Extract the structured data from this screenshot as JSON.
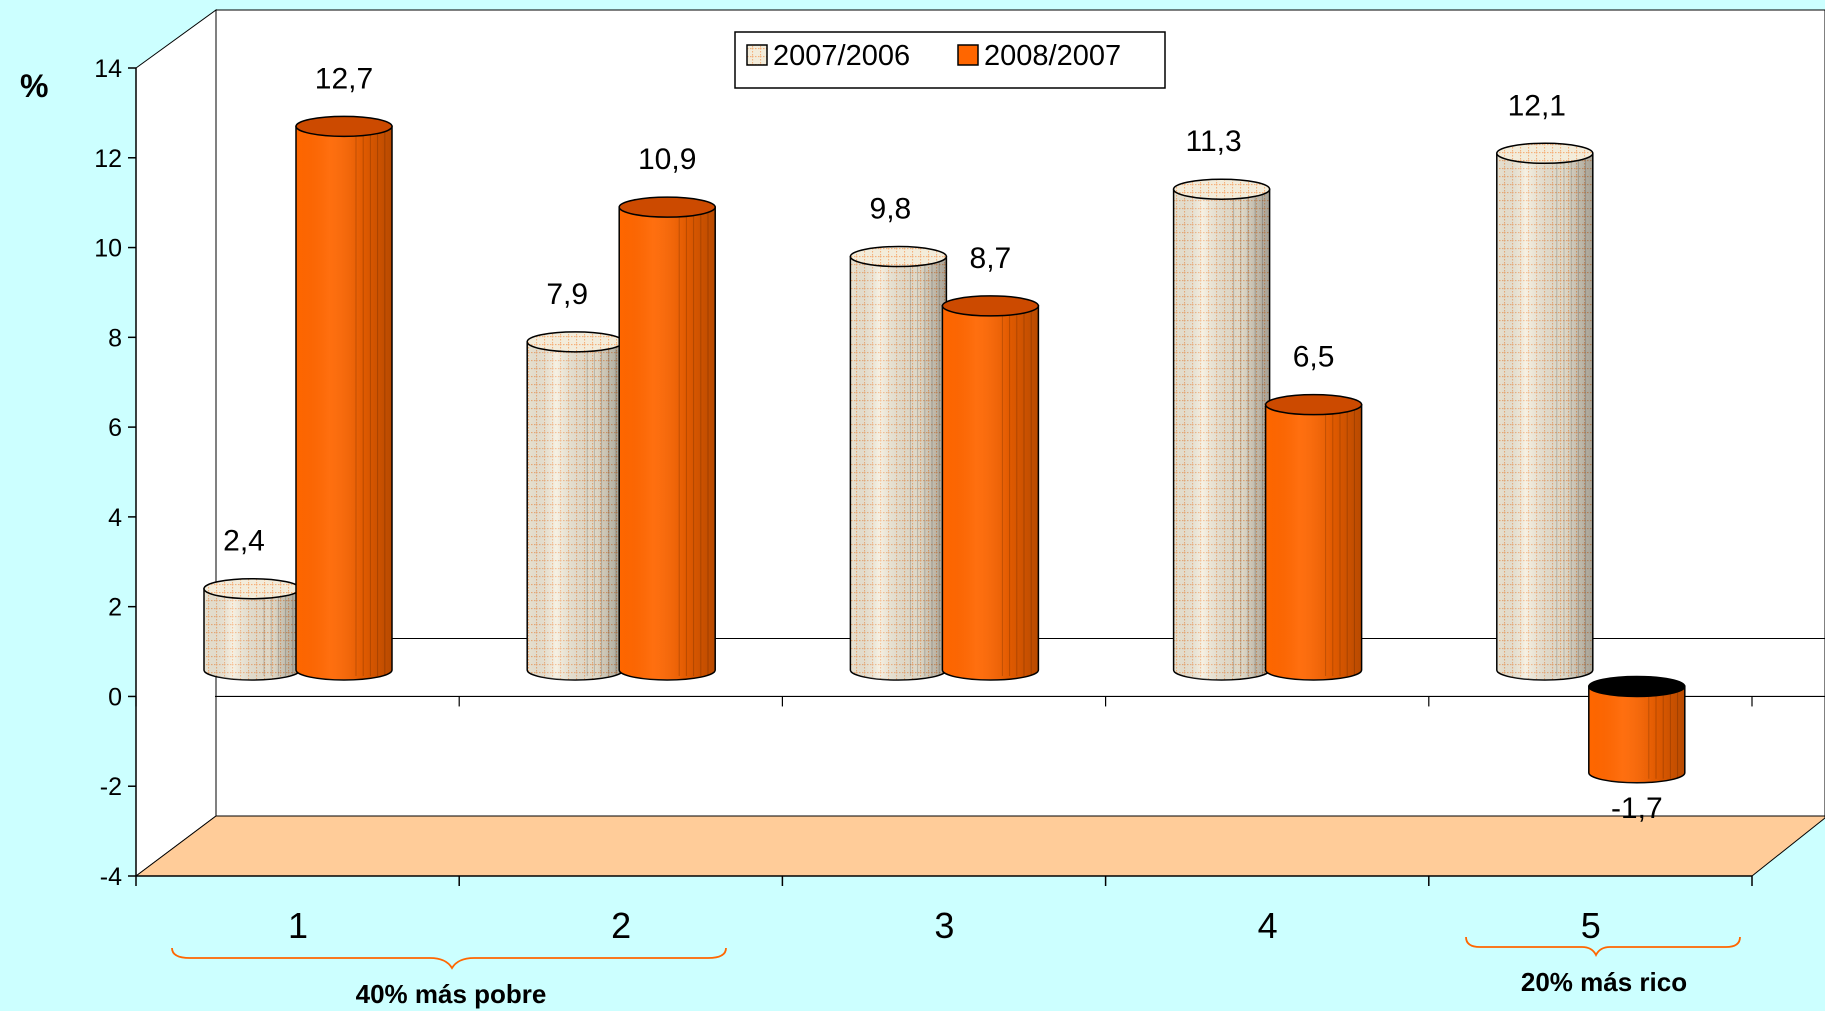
{
  "chart_data": {
    "type": "bar",
    "categories": [
      "1",
      "2",
      "3",
      "4",
      "5"
    ],
    "series": [
      {
        "name": "2007/2006",
        "values": [
          2.4,
          7.9,
          9.8,
          11.3,
          12.1
        ],
        "color": "#f3ecda",
        "pattern": "dotted-grid",
        "pattern_color": "#f4b07a"
      },
      {
        "name": "2008/2007",
        "values": [
          12.7,
          10.9,
          8.7,
          6.5,
          -1.7
        ],
        "color": "#ff6600"
      }
    ],
    "value_labels": {
      "s0": [
        "2,4",
        "7,9",
        "9,8",
        "11,3",
        "12,1"
      ],
      "s1": [
        "12,7",
        "10,9",
        "8,7",
        "6,5",
        "-1,7"
      ]
    },
    "yaxis": {
      "ticks": [
        -4,
        -2,
        0,
        2,
        4,
        6,
        8,
        10,
        12,
        14
      ],
      "tick_labels": [
        "-4",
        "-2",
        "0",
        "2",
        "4",
        "6",
        "8",
        "10",
        "12",
        "14"
      ]
    },
    "ylim": [
      -4,
      14
    ],
    "ylabel": "%",
    "title": "",
    "xlabel": "",
    "legend_position": "top-center",
    "groups": [
      {
        "label": "40% más pobre",
        "categories": [
          "1",
          "2"
        ]
      },
      {
        "label": "20% más rico",
        "categories": [
          "5"
        ]
      }
    ],
    "bar_shape": "3d-cylinder",
    "floor_color": "#ffcc99",
    "background_color": "#ccffff",
    "brace_color": "#ff6600"
  }
}
